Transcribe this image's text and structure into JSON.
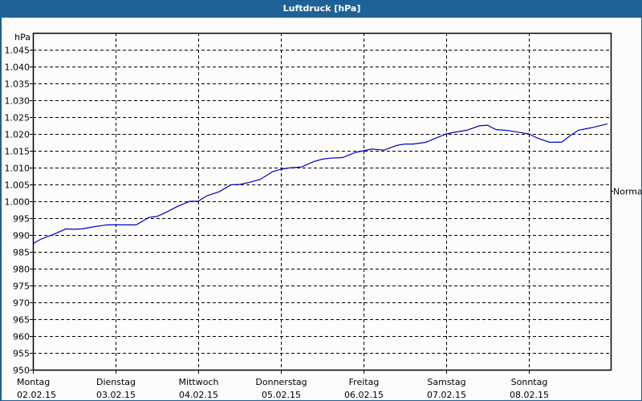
{
  "window": {
    "title": "Luftdruck [hPa]"
  },
  "colors": {
    "titlebar": "#1e6298",
    "background": "#fcfdfb",
    "line": "#0000c0",
    "grid": "#000000"
  },
  "chart_data": {
    "type": "line",
    "title": "Luftdruck [hPa]",
    "xlabel": "",
    "ylabel": "hPa",
    "ylim": [
      950,
      1045
    ],
    "yticks": [
      950,
      955,
      960,
      965,
      970,
      975,
      980,
      985,
      990,
      995,
      1000,
      1005,
      1010,
      1015,
      1020,
      1025,
      1030,
      1035,
      1040,
      1045
    ],
    "ytick_labels": [
      "950",
      "955",
      "960",
      "965",
      "970",
      "975",
      "980",
      "985",
      "990",
      "995",
      "1.000",
      "1.005",
      "1.010",
      "1.015",
      "1.020",
      "1.025",
      "1.030",
      "1.035",
      "1.040",
      "1.045"
    ],
    "x_categories": [
      {
        "day": "Montag",
        "date": "02.02.15"
      },
      {
        "day": "Dienstag",
        "date": "03.02.15"
      },
      {
        "day": "Mittwoch",
        "date": "04.02.15"
      },
      {
        "day": "Donnerstag",
        "date": "05.02.15"
      },
      {
        "day": "Freitag",
        "date": "06.02.15"
      },
      {
        "day": "Samstag",
        "date": "07.02.15"
      },
      {
        "day": "Sonntag",
        "date": "08.02.15"
      }
    ],
    "grid": true,
    "grid_style": "dashed",
    "annotation": {
      "label": "Normal",
      "value": 1005
    },
    "series": [
      {
        "name": "Luftdruck",
        "x_days": [
          0,
          0.1,
          0.25,
          0.4,
          0.5,
          0.6,
          0.75,
          0.9,
          1.0,
          1.1,
          1.25,
          1.4,
          1.5,
          1.6,
          1.75,
          1.9,
          2.0,
          2.1,
          2.25,
          2.4,
          2.5,
          2.6,
          2.75,
          2.9,
          3.0,
          3.1,
          3.25,
          3.4,
          3.5,
          3.6,
          3.75,
          3.9,
          4.0,
          4.1,
          4.25,
          4.4,
          4.5,
          4.6,
          4.75,
          4.9,
          5.0,
          5.1,
          5.25,
          5.4,
          5.5,
          5.6,
          5.75,
          5.9,
          6.0,
          6.1,
          6.25,
          6.4,
          6.5,
          6.6,
          6.75,
          6.95
        ],
        "values": [
          987.4,
          988.8,
          990.2,
          991.8,
          991.7,
          991.8,
          992.5,
          993.0,
          993.0,
          993.0,
          993.0,
          995.2,
          995.5,
          996.6,
          998.5,
          1000.0,
          1000.0,
          1001.6,
          1002.8,
          1004.9,
          1005.0,
          1005.5,
          1006.5,
          1008.8,
          1009.5,
          1009.9,
          1010.2,
          1011.8,
          1012.5,
          1012.8,
          1013.0,
          1014.5,
          1015.0,
          1015.5,
          1015.2,
          1016.6,
          1017.0,
          1017.0,
          1017.5,
          1019.0,
          1020.0,
          1020.5,
          1021.1,
          1022.4,
          1022.6,
          1021.3,
          1021.0,
          1020.4,
          1020.0,
          1018.8,
          1017.5,
          1017.6,
          1019.5,
          1021.1,
          1021.8,
          1023.0
        ]
      }
    ]
  }
}
